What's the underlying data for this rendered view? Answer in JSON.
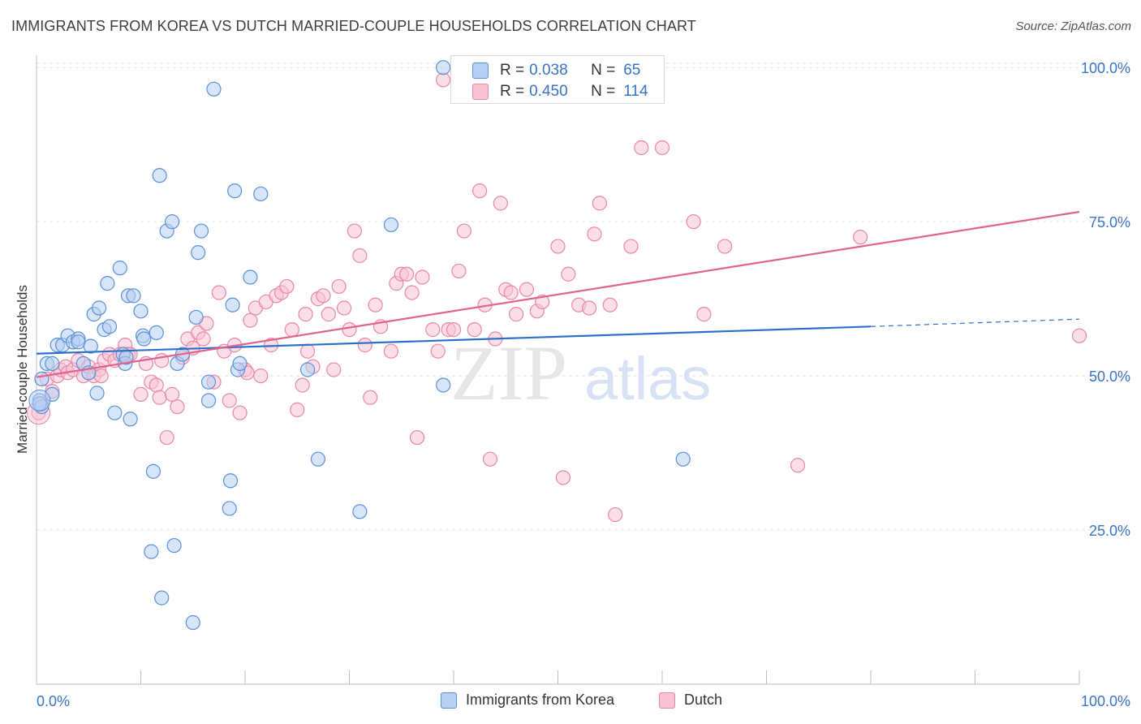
{
  "title": "IMMIGRANTS FROM KOREA VS DUTCH MARRIED-COUPLE HOUSEHOLDS CORRELATION CHART",
  "source": "Source: ZipAtlas.com",
  "watermark": {
    "zip": "ZIP",
    "atlas": "atlas"
  },
  "legend": {
    "series": [
      {
        "r_label": "R = ",
        "r_value": "0.038",
        "n_label": "N = ",
        "n_value": "65"
      },
      {
        "r_label": "R = ",
        "r_value": "0.450",
        "n_label": "N = ",
        "n_value": "114"
      }
    ]
  },
  "colors": {
    "korea_fill": "#b7d0f2",
    "korea_stroke": "#5b8fd6",
    "korea_line": "#2c6fcb",
    "dutch_fill": "#f7c2d3",
    "dutch_stroke": "#e887a8",
    "dutch_line": "#e0638f",
    "axis_label": "#3a73c4",
    "grid": "#e3e3e3"
  },
  "chart_data": {
    "type": "scatter",
    "title": "IMMIGRANTS FROM KOREA VS DUTCH MARRIED-COUPLE HOUSEHOLDS CORRELATION CHART",
    "xlabel": "",
    "ylabel": "Married-couple Households",
    "xlim": [
      0,
      100
    ],
    "ylim": [
      0,
      102
    ],
    "x_tick_labels": [
      "0.0%",
      "100.0%"
    ],
    "y_tick_labels": [
      "25.0%",
      "50.0%",
      "75.0%",
      "100.0%"
    ],
    "y_ticks": [
      25,
      50,
      75,
      100
    ],
    "grid": true,
    "legend_position": "top-center",
    "series": [
      {
        "name": "Immigrants from Korea",
        "R": 0.038,
        "N": 65,
        "trend": {
          "x0": 0,
          "y0": 53.6,
          "x1": 80,
          "y1": 58.0,
          "x_dashed_end": 100,
          "y_dashed_end": 59.2
        },
        "points": [
          [
            0.3,
            46
          ],
          [
            0.5,
            45
          ],
          [
            0.5,
            49.5
          ],
          [
            1,
            52
          ],
          [
            1.5,
            47
          ],
          [
            1.5,
            52
          ],
          [
            2,
            55
          ],
          [
            2.5,
            55
          ],
          [
            3,
            56.5
          ],
          [
            3.5,
            55.5
          ],
          [
            4,
            56
          ],
          [
            4,
            55.5
          ],
          [
            4.5,
            52
          ],
          [
            5,
            50.5
          ],
          [
            5.2,
            54.8
          ],
          [
            5.5,
            60
          ],
          [
            5.8,
            47.2
          ],
          [
            6,
            61
          ],
          [
            6.5,
            57.5
          ],
          [
            6.8,
            65
          ],
          [
            7,
            58
          ],
          [
            7.5,
            44
          ],
          [
            8,
            67.5
          ],
          [
            8.3,
            53.5
          ],
          [
            8.5,
            52
          ],
          [
            8.6,
            53
          ],
          [
            8.8,
            63
          ],
          [
            9,
            43
          ],
          [
            9.3,
            63
          ],
          [
            10,
            60.5
          ],
          [
            10.2,
            56.5
          ],
          [
            10.3,
            56
          ],
          [
            11,
            21.5
          ],
          [
            11.2,
            34.5
          ],
          [
            11.5,
            57
          ],
          [
            11.8,
            82.5
          ],
          [
            12,
            14
          ],
          [
            12.5,
            73.5
          ],
          [
            13,
            75
          ],
          [
            13.2,
            22.5
          ],
          [
            13.5,
            52
          ],
          [
            14,
            53.5
          ],
          [
            15,
            10
          ],
          [
            15.3,
            59.5
          ],
          [
            15.5,
            70
          ],
          [
            15.8,
            73.5
          ],
          [
            16.5,
            49
          ],
          [
            16.5,
            46
          ],
          [
            17,
            96.5
          ],
          [
            18.5,
            28.5
          ],
          [
            18.6,
            33
          ],
          [
            18.8,
            61.5
          ],
          [
            19,
            80
          ],
          [
            19.3,
            51
          ],
          [
            19.5,
            52
          ],
          [
            20.5,
            66
          ],
          [
            21.5,
            79.5
          ],
          [
            26,
            51
          ],
          [
            27,
            36.5
          ],
          [
            31,
            28
          ],
          [
            34,
            74.5
          ],
          [
            39,
            100
          ],
          [
            39,
            48.5
          ],
          [
            62,
            36.5
          ],
          [
            0.3,
            45.5
          ]
        ]
      },
      {
        "name": "Dutch",
        "R": 0.45,
        "N": 114,
        "trend": {
          "x0": 0,
          "y0": 49.8,
          "x1": 100,
          "y1": 76.6
        },
        "points": [
          [
            0.2,
            44
          ],
          [
            0.5,
            45.5
          ],
          [
            1,
            49.5
          ],
          [
            1.5,
            47.5
          ],
          [
            2,
            50
          ],
          [
            2.3,
            51
          ],
          [
            2.8,
            51.5
          ],
          [
            3,
            50.5
          ],
          [
            3.5,
            51
          ],
          [
            4,
            52.5
          ],
          [
            4.5,
            50
          ],
          [
            5,
            51.5
          ],
          [
            5.5,
            50
          ],
          [
            6,
            51
          ],
          [
            6.2,
            50
          ],
          [
            6.5,
            52.5
          ],
          [
            7,
            53.5
          ],
          [
            7.5,
            52.5
          ],
          [
            8,
            53.5
          ],
          [
            8.5,
            55
          ],
          [
            8.8,
            53.5
          ],
          [
            9,
            53.5
          ],
          [
            10,
            47
          ],
          [
            10.5,
            52
          ],
          [
            11,
            49
          ],
          [
            11.5,
            48.5
          ],
          [
            11.8,
            46.5
          ],
          [
            12,
            52.5
          ],
          [
            12.5,
            40
          ],
          [
            13,
            47
          ],
          [
            13.5,
            45
          ],
          [
            14,
            53
          ],
          [
            14.5,
            56
          ],
          [
            15,
            54.5
          ],
          [
            15.5,
            57
          ],
          [
            16,
            56
          ],
          [
            16.3,
            58.5
          ],
          [
            17,
            49
          ],
          [
            17.5,
            63.5
          ],
          [
            18,
            54
          ],
          [
            18.5,
            46
          ],
          [
            19,
            55
          ],
          [
            19.5,
            44
          ],
          [
            20,
            51
          ],
          [
            20.2,
            50.5
          ],
          [
            20.5,
            59
          ],
          [
            21,
            61
          ],
          [
            21.5,
            50
          ],
          [
            22,
            62
          ],
          [
            22.5,
            55
          ],
          [
            23,
            63
          ],
          [
            23.5,
            63.5
          ],
          [
            24,
            64.5
          ],
          [
            24.5,
            57.5
          ],
          [
            25,
            44.5
          ],
          [
            25.5,
            48.5
          ],
          [
            25.8,
            60
          ],
          [
            26,
            54
          ],
          [
            26.5,
            51.5
          ],
          [
            27,
            62.5
          ],
          [
            27.5,
            63
          ],
          [
            28,
            60
          ],
          [
            28.5,
            51
          ],
          [
            29,
            64.5
          ],
          [
            29.5,
            61
          ],
          [
            30,
            57.5
          ],
          [
            30.5,
            73.5
          ],
          [
            31,
            69.5
          ],
          [
            31.5,
            55
          ],
          [
            32,
            46.5
          ],
          [
            32.5,
            61.5
          ],
          [
            33,
            58
          ],
          [
            34,
            54
          ],
          [
            34.5,
            65
          ],
          [
            35,
            66.5
          ],
          [
            35.5,
            66.5
          ],
          [
            36,
            63.5
          ],
          [
            36.5,
            40
          ],
          [
            37,
            66
          ],
          [
            38,
            57.5
          ],
          [
            38.5,
            54
          ],
          [
            39,
            98
          ],
          [
            39.5,
            57.5
          ],
          [
            40,
            57.5
          ],
          [
            40.5,
            67
          ],
          [
            41,
            73.5
          ],
          [
            42,
            57.5
          ],
          [
            42.5,
            80
          ],
          [
            43,
            61.5
          ],
          [
            43.5,
            36.5
          ],
          [
            44,
            56
          ],
          [
            44.5,
            78
          ],
          [
            45,
            64
          ],
          [
            45.5,
            63.5
          ],
          [
            46,
            60
          ],
          [
            47,
            64
          ],
          [
            48,
            60.5
          ],
          [
            48.5,
            62
          ],
          [
            50,
            71
          ],
          [
            50.5,
            33.5
          ],
          [
            51,
            66.5
          ],
          [
            52,
            61.5
          ],
          [
            53,
            61
          ],
          [
            53.5,
            73
          ],
          [
            54,
            78
          ],
          [
            55,
            61.5
          ],
          [
            55.5,
            27.5
          ],
          [
            57,
            71
          ],
          [
            58,
            87
          ],
          [
            60,
            87
          ],
          [
            63,
            75
          ],
          [
            64,
            60
          ],
          [
            66,
            71
          ],
          [
            73,
            35.5
          ],
          [
            79,
            72.5
          ],
          [
            100,
            56.5
          ]
        ]
      }
    ]
  }
}
